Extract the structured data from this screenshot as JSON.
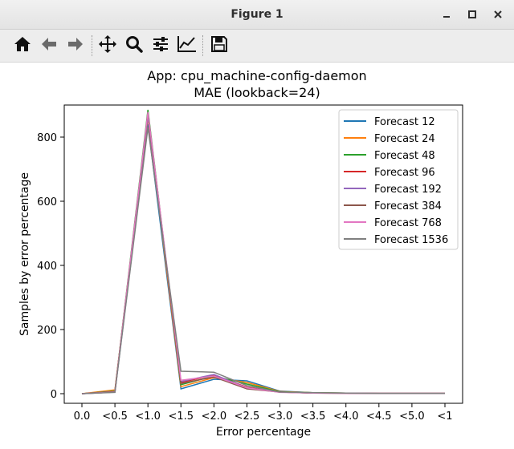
{
  "window": {
    "title": "Figure 1"
  },
  "toolbar": {
    "buttons": [
      {
        "name": "home-button",
        "icon": "home-icon"
      },
      {
        "name": "back-button",
        "icon": "arrow-left-icon"
      },
      {
        "name": "forward-button",
        "icon": "arrow-right-icon"
      },
      {
        "name": "pan-button",
        "icon": "move-icon"
      },
      {
        "name": "zoom-button",
        "icon": "magnifier-icon"
      },
      {
        "name": "configure-subplots-button",
        "icon": "sliders-icon"
      },
      {
        "name": "edit-axes-button",
        "icon": "line-chart-icon"
      },
      {
        "name": "save-button",
        "icon": "floppy-disk-icon"
      }
    ]
  },
  "chart_data": {
    "type": "line",
    "title": "App: cpu_machine-config-daemon",
    "subtitle": "MAE (lookback=24)",
    "xlabel": "Error percentage",
    "ylabel": "Samples by error percentage",
    "categories": [
      "0.0",
      "<0.5",
      "<1.0",
      "<1.5",
      "<2.0",
      "<2.5",
      "<3.0",
      "<3.5",
      "<4.0",
      "<4.5",
      "<5.0",
      "<1"
    ],
    "ylim": [
      -30,
      900
    ],
    "yticks": [
      0,
      200,
      400,
      600,
      800
    ],
    "legend_position": "top-right",
    "series": [
      {
        "name": "Forecast 12",
        "color": "#1f77b4",
        "values": [
          0,
          5,
          840,
          15,
          45,
          40,
          8,
          3,
          2,
          1,
          1,
          1
        ]
      },
      {
        "name": "Forecast 24",
        "color": "#ff7f0e",
        "values": [
          0,
          12,
          860,
          22,
          50,
          35,
          7,
          3,
          2,
          1,
          1,
          1
        ]
      },
      {
        "name": "Forecast 48",
        "color": "#2ca02c",
        "values": [
          0,
          8,
          885,
          28,
          55,
          30,
          6,
          3,
          2,
          1,
          1,
          1
        ]
      },
      {
        "name": "Forecast 96",
        "color": "#d62728",
        "values": [
          0,
          6,
          870,
          35,
          58,
          20,
          5,
          2,
          2,
          1,
          1,
          1
        ]
      },
      {
        "name": "Forecast 192",
        "color": "#9467bd",
        "values": [
          0,
          5,
          865,
          38,
          60,
          18,
          5,
          2,
          2,
          1,
          1,
          1
        ]
      },
      {
        "name": "Forecast 384",
        "color": "#8c564b",
        "values": [
          0,
          7,
          875,
          32,
          52,
          15,
          5,
          2,
          1,
          1,
          1,
          1
        ]
      },
      {
        "name": "Forecast 768",
        "color": "#e377c2",
        "values": [
          0,
          5,
          878,
          42,
          55,
          18,
          4,
          2,
          1,
          1,
          1,
          1
        ]
      },
      {
        "name": "Forecast 1536",
        "color": "#7f7f7f",
        "values": [
          0,
          4,
          830,
          70,
          67,
          25,
          5,
          3,
          2,
          1,
          1,
          1
        ]
      }
    ]
  }
}
